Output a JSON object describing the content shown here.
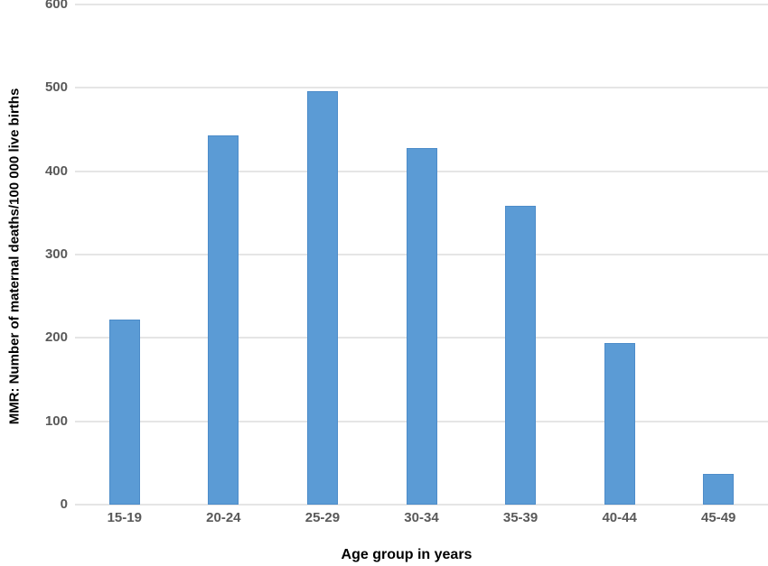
{
  "chart_data": {
    "type": "bar",
    "title": "",
    "categories": [
      "15-19",
      "20-24",
      "25-29",
      "30-34",
      "35-39",
      "40-44",
      "45-49"
    ],
    "values": [
      222,
      443,
      496,
      428,
      358,
      194,
      37
    ],
    "xlabel": "Age group in years",
    "ylabel": "MMR: Number of maternal deaths/100 000 live births",
    "ylim": [
      0,
      600
    ],
    "yticks": [
      0,
      100,
      200,
      300,
      400,
      500,
      600
    ],
    "grid": true,
    "legend_position": "none",
    "bar_color": "#5b9bd5",
    "bar_border_color": "#4d8cc9",
    "gridline_color": "#e5e5e5",
    "tick_label_color": "#595959",
    "axis_title_color": "#000000",
    "background_color": "#ffffff"
  }
}
